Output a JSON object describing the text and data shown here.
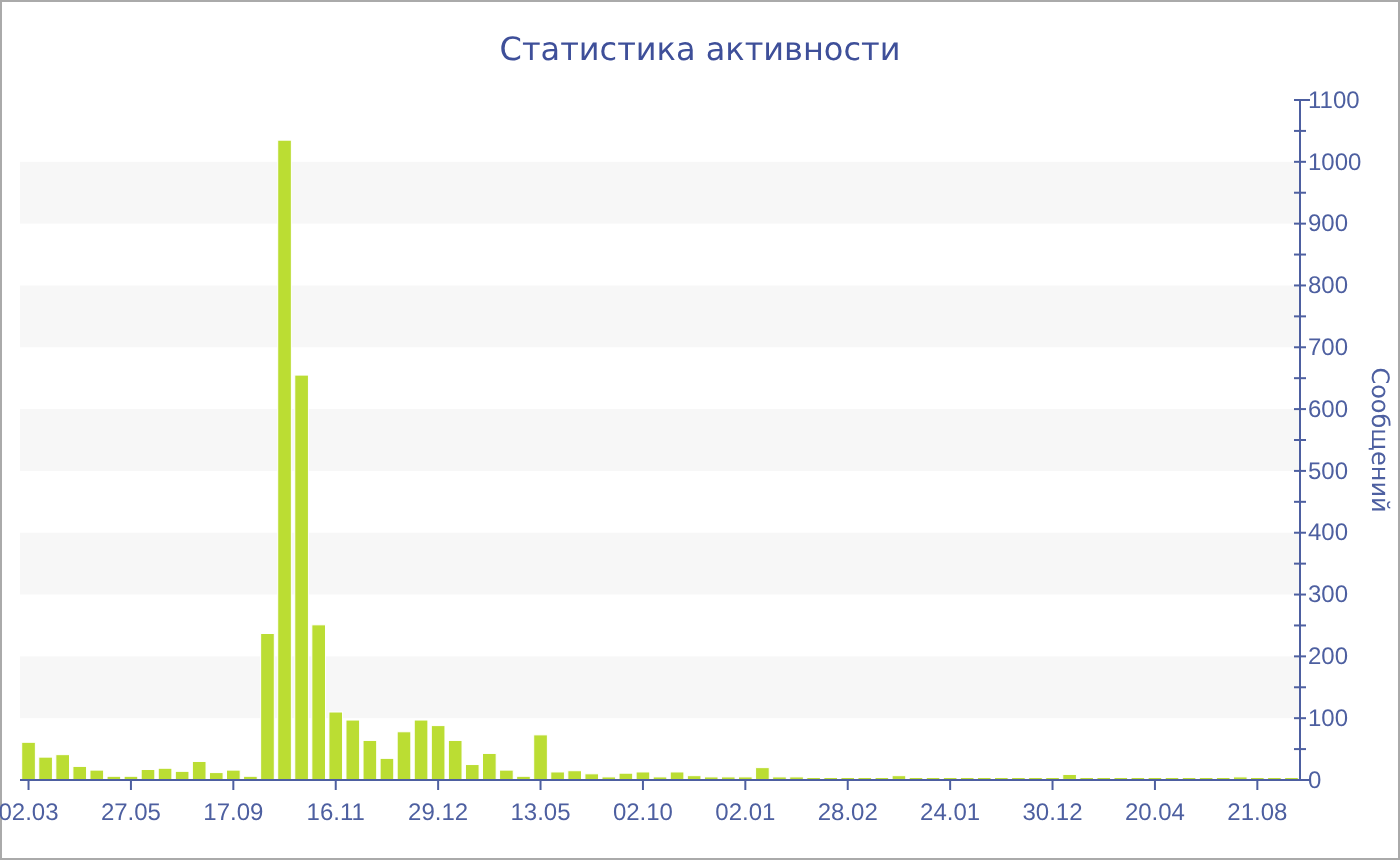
{
  "chart_data": {
    "type": "bar",
    "title": "Статистика активности",
    "ylabel": "Сообщений",
    "categories": [
      "02.03",
      null,
      null,
      null,
      null,
      null,
      "27.05",
      null,
      null,
      null,
      null,
      null,
      "17.09",
      null,
      null,
      null,
      null,
      null,
      "16.11",
      null,
      null,
      null,
      null,
      null,
      "29.12",
      null,
      null,
      null,
      null,
      null,
      "13.05",
      null,
      null,
      null,
      null,
      null,
      "02.10",
      null,
      null,
      null,
      null,
      null,
      "02.01",
      null,
      null,
      null,
      null,
      null,
      "28.02",
      null,
      null,
      null,
      null,
      null,
      "24.01",
      null,
      null,
      null,
      null,
      null,
      "30.12",
      null,
      null,
      null,
      null,
      null,
      "20.04",
      null,
      null,
      null,
      null,
      null,
      "21.08",
      null,
      null
    ],
    "values": [
      61,
      37,
      41,
      22,
      16,
      6,
      6,
      17,
      19,
      14,
      30,
      12,
      16,
      6,
      237,
      1035,
      655,
      251,
      110,
      97,
      64,
      35,
      78,
      97,
      88,
      64,
      25,
      43,
      16,
      6,
      73,
      13,
      15,
      10,
      5,
      11,
      13,
      5,
      13,
      7,
      5,
      5,
      5,
      20,
      5,
      5,
      4,
      4,
      4,
      4,
      4,
      7,
      4,
      4,
      4,
      4,
      4,
      4,
      4,
      4,
      4,
      9,
      4,
      4,
      4,
      4,
      4,
      4,
      4,
      4,
      4,
      5,
      4,
      4,
      4
    ],
    "color": "#bbdd33",
    "ylim": [
      0,
      1100
    ],
    "yticks": [
      0,
      {
        "value": 50,
        "label": null
      },
      100,
      {
        "value": 150,
        "label": null
      },
      200,
      {
        "value": 250,
        "label": null
      },
      300,
      {
        "value": 350,
        "label": null
      },
      400,
      {
        "value": 450,
        "label": null
      },
      500,
      {
        "value": 550,
        "label": null
      },
      600,
      {
        "value": 650,
        "label": null
      },
      700,
      {
        "value": 750,
        "label": null
      },
      800,
      {
        "value": 850,
        "label": null
      },
      900,
      {
        "value": 950,
        "label": null
      },
      1000,
      {
        "value": 1050,
        "label": null
      },
      1100
    ],
    "bands": [
      {
        "axis": "y",
        "from": 100,
        "to": 200,
        "color": "#f7f7f7"
      },
      {
        "axis": "y",
        "from": 300,
        "to": 400,
        "color": "#f7f7f7"
      },
      {
        "axis": "y",
        "from": 500,
        "to": 600,
        "color": "#f7f7f7"
      },
      {
        "axis": "y",
        "from": 700,
        "to": 800,
        "color": "#f7f7f7"
      },
      {
        "axis": "y",
        "from": 900,
        "to": 1000,
        "color": "#f7f7f7"
      }
    ]
  }
}
